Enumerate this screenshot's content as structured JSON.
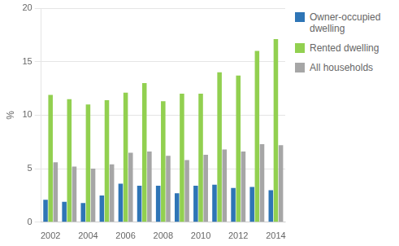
{
  "chart_data": {
    "type": "bar",
    "ylabel": "%",
    "categories": [
      "2002",
      null,
      "2004",
      null,
      "2006",
      null,
      "2008",
      null,
      "2010",
      null,
      "2012",
      null,
      "2014"
    ],
    "series": [
      {
        "name": "Owner-occupied\ndwelling",
        "color": "#2e75b6",
        "values": [
          2.1,
          1.9,
          1.8,
          2.5,
          3.6,
          3.4,
          3.4,
          2.7,
          3.4,
          3.5,
          3.2,
          3.3,
          3.0
        ]
      },
      {
        "name": "Rented dwelling",
        "color": "#92d050",
        "values": [
          11.9,
          11.5,
          11.0,
          11.4,
          12.1,
          13.0,
          11.3,
          12.0,
          12.0,
          14.0,
          13.7,
          16.0,
          17.1
        ]
      },
      {
        "name": "All households",
        "color": "#a6a6a6",
        "values": [
          5.6,
          5.2,
          5.0,
          5.4,
          6.5,
          6.6,
          6.2,
          5.8,
          6.3,
          6.8,
          6.6,
          7.3,
          7.2
        ]
      }
    ],
    "ylim": [
      0,
      20
    ],
    "yticks": [
      0,
      5,
      10,
      15,
      20
    ],
    "grid": true,
    "legend": "right"
  }
}
